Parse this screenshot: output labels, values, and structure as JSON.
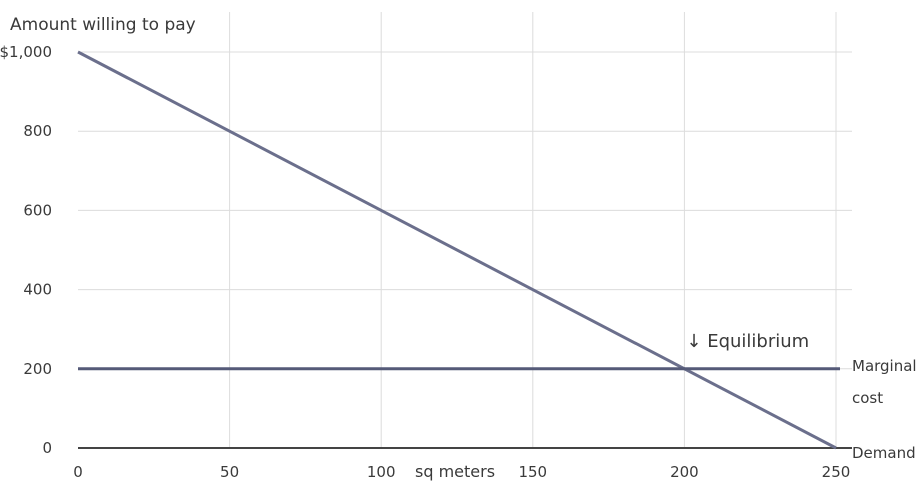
{
  "chart_data": {
    "type": "line",
    "title": "",
    "xlabel": "sq meters",
    "ylabel": "Amount willing to pay",
    "xlim": [
      0,
      250
    ],
    "ylim": [
      0,
      1000
    ],
    "x_ticks": [
      0,
      50,
      100,
      150,
      200,
      250
    ],
    "y_ticks": [
      0,
      200,
      400,
      600,
      800,
      1000
    ],
    "x_tick_labels": [
      "0",
      "50",
      "100",
      "150",
      "200",
      "250"
    ],
    "y_tick_labels": [
      "0",
      "200",
      "400",
      "600",
      "800",
      "$1,000"
    ],
    "grid": true,
    "series": [
      {
        "name": "Demand",
        "x": [
          0,
          250
        ],
        "y": [
          1000,
          0
        ]
      },
      {
        "name": "Marginal cost",
        "x": [
          0,
          250
        ],
        "y": [
          200,
          200
        ]
      }
    ],
    "series_label_lines": {
      "marginal_cost": [
        "Marginal",
        "cost"
      ],
      "demand": [
        "Demand"
      ]
    },
    "annotations": [
      {
        "text": "↓ Equilibrium",
        "x": 200,
        "y": 200
      }
    ],
    "colors": {
      "demand": "#6b6f8c",
      "marginal_cost": "#555a78",
      "grid": "#dcdcdc",
      "axis": "#444444"
    }
  }
}
